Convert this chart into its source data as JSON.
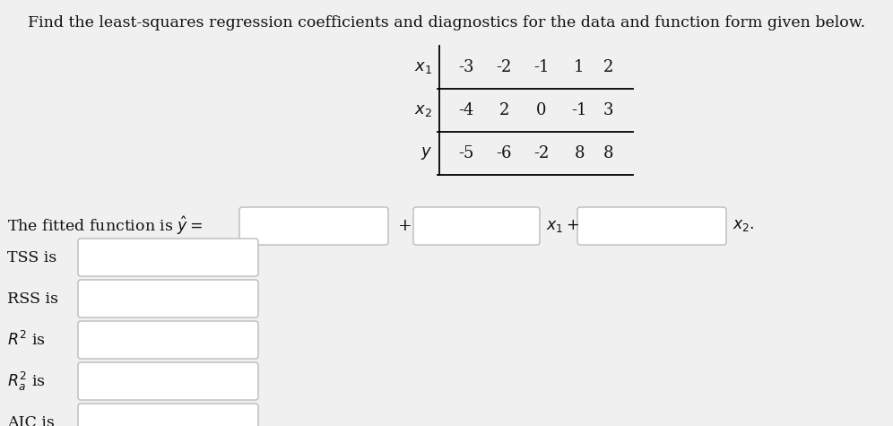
{
  "title": "Find the least-squares regression coefficients and diagnostics for the data and function form given below.",
  "title_fontsize": 12.5,
  "bg_color": "#f0f0f0",
  "table": {
    "row_labels": [
      "$x_1$",
      "$x_2$",
      "$y$"
    ],
    "col_values": [
      [
        "-3",
        "-2",
        "-1",
        "1",
        "2"
      ],
      [
        "-4",
        "2",
        "0",
        "-1",
        "3"
      ],
      [
        "-5",
        "-6",
        "-2",
        "8",
        "8"
      ]
    ]
  },
  "fitted_label": "The fitted function is $\\hat{y} =$",
  "fitted_plus": "+",
  "fitted_x1": "$x_1+$",
  "fitted_x2": "$x_2.$",
  "diagnostics": [
    "TSS is",
    "RSS is",
    "$R^2$ is",
    "$R_a^2$ is",
    "AIC is"
  ],
  "box_color": "#ffffff",
  "box_edge_color": "#bbbbbb",
  "text_color": "#111111",
  "font_family": "DejaVu Serif"
}
